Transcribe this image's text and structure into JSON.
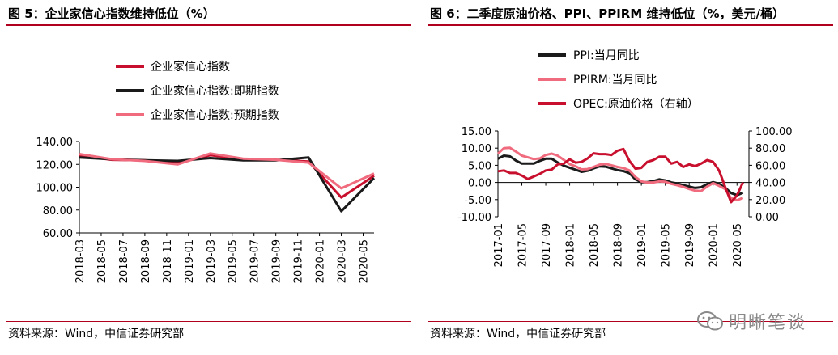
{
  "left": {
    "title": "图 5：企业家信心指数维持低位（%）",
    "source": "资料来源：Wind，中信证券研究部"
  },
  "right": {
    "title": "图 6：二季度原油价格、PPI、PPIRM 维持低位（%，美元/桶）",
    "source": "资料来源：Wind，中信证券研究部"
  },
  "watermark": {
    "text": "明晰笔谈",
    "icon": "wechat-icon",
    "color": "#8a8a8a"
  },
  "colors": {
    "red": "#c8102e",
    "black": "#1a1a1a",
    "pink": "#f06b7e",
    "rule": "#b0001e"
  },
  "chart_data": [
    {
      "type": "line",
      "title": "",
      "x": [
        "2018-03",
        "2018-06",
        "2018-09",
        "2018-12",
        "2019-03",
        "2019-06",
        "2019-09",
        "2019-12",
        "2020-03",
        "2020-06"
      ],
      "xticks": [
        "2018-03",
        "2018-05",
        "2018-07",
        "2018-09",
        "2018-11",
        "2019-01",
        "2019-03",
        "2019-05",
        "2019-07",
        "2019-09",
        "2019-11",
        "2020-01",
        "2020-03",
        "2020-05"
      ],
      "series": [
        {
          "name": "企业家信心指数",
          "color": "#c8102e",
          "values": [
            127.5,
            124.0,
            123.5,
            121.0,
            128.0,
            124.5,
            124.0,
            122.5,
            91.0,
            110.0
          ]
        },
        {
          "name": "企业家信心指数:即期指数",
          "color": "#1a1a1a",
          "values": [
            126.0,
            124.5,
            123.5,
            123.0,
            125.5,
            123.5,
            123.5,
            126.0,
            79.0,
            108.0
          ]
        },
        {
          "name": "企业家信心指数:预期指数",
          "color": "#f06b7e",
          "values": [
            129.0,
            124.5,
            123.0,
            120.0,
            129.5,
            125.0,
            124.0,
            121.5,
            99.0,
            112.0
          ]
        }
      ],
      "ylim": [
        60,
        140
      ],
      "yticks": [
        "60.00",
        "80.00",
        "100.00",
        "120.00",
        "140.00"
      ],
      "xlabel": "",
      "ylabel": "",
      "grid": false,
      "legend": "top"
    },
    {
      "type": "line",
      "title": "",
      "x": [
        "2017-01",
        "2017-02",
        "2017-03",
        "2017-04",
        "2017-05",
        "2017-06",
        "2017-07",
        "2017-08",
        "2017-09",
        "2017-10",
        "2017-11",
        "2017-12",
        "2018-01",
        "2018-02",
        "2018-03",
        "2018-04",
        "2018-05",
        "2018-06",
        "2018-07",
        "2018-08",
        "2018-09",
        "2018-10",
        "2018-11",
        "2018-12",
        "2019-01",
        "2019-02",
        "2019-03",
        "2019-04",
        "2019-05",
        "2019-06",
        "2019-07",
        "2019-08",
        "2019-09",
        "2019-10",
        "2019-11",
        "2019-12",
        "2020-01",
        "2020-02",
        "2020-03",
        "2020-04",
        "2020-05",
        "2020-06"
      ],
      "xticks": [
        "2017-01",
        "2017-05",
        "2017-09",
        "2018-01",
        "2018-05",
        "2018-09",
        "2019-01",
        "2019-05",
        "2019-09",
        "2020-01",
        "2020-05"
      ],
      "series": [
        {
          "name": "PPI:当月同比",
          "color": "#1a1a1a",
          "axis": "left",
          "values": [
            6.9,
            7.8,
            7.6,
            6.4,
            5.5,
            5.5,
            5.5,
            6.3,
            6.9,
            6.9,
            5.8,
            4.9,
            4.3,
            3.7,
            3.1,
            3.4,
            4.1,
            4.7,
            4.6,
            4.1,
            3.6,
            3.3,
            2.7,
            0.9,
            0.1,
            0.1,
            0.4,
            0.9,
            0.6,
            0.0,
            -0.3,
            -0.8,
            -1.2,
            -1.6,
            -1.4,
            -0.5,
            0.1,
            -0.4,
            -1.5,
            -3.1,
            -3.7,
            -3.0
          ]
        },
        {
          "name": "PPIRM:当月同比",
          "color": "#f06b7e",
          "axis": "left",
          "values": [
            8.4,
            10.0,
            10.1,
            9.0,
            7.8,
            7.3,
            6.8,
            7.0,
            8.0,
            8.4,
            7.8,
            6.6,
            5.3,
            4.7,
            3.8,
            3.9,
            4.5,
            5.2,
            5.4,
            5.0,
            4.5,
            4.2,
            3.5,
            1.6,
            0.3,
            0.0,
            0.0,
            0.3,
            0.2,
            -0.4,
            -0.8,
            -1.3,
            -1.9,
            -2.4,
            -2.5,
            -1.2,
            -0.2,
            -1.0,
            -1.9,
            -4.6,
            -5.2,
            -4.5
          ]
        },
        {
          "name": "OPEC:原油价格（右轴）",
          "color": "#c8102e",
          "axis": "right",
          "values": [
            53,
            54,
            51,
            51,
            48,
            44,
            47,
            50,
            54,
            55,
            61,
            62,
            67,
            63,
            64,
            68,
            74,
            73,
            73,
            72,
            77,
            79,
            65,
            56,
            57,
            64,
            66,
            70,
            70,
            62,
            64,
            58,
            61,
            59,
            62,
            66,
            64,
            54,
            35,
            17,
            25,
            40
          ]
        }
      ],
      "ylim_left": [
        -10,
        15
      ],
      "yticks_left": [
        "-10.00",
        "-5.00",
        "0.00",
        "5.00",
        "10.00",
        "15.00"
      ],
      "ylim_right": [
        0,
        100
      ],
      "yticks_right": [
        "0.00",
        "20.00",
        "40.00",
        "60.00",
        "80.00",
        "100.00"
      ],
      "xlabel": "",
      "ylabel": "",
      "grid": false,
      "legend": "top-left"
    }
  ]
}
